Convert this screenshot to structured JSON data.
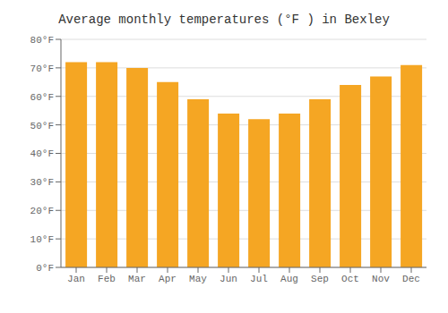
{
  "chart_data": {
    "type": "bar",
    "title": "Average monthly temperatures (°F ) in Bexley",
    "categories": [
      "Jan",
      "Feb",
      "Mar",
      "Apr",
      "May",
      "Jun",
      "Jul",
      "Aug",
      "Sep",
      "Oct",
      "Nov",
      "Dec"
    ],
    "values": [
      72,
      72,
      70,
      65,
      59,
      54,
      52,
      54,
      59,
      64,
      67,
      71
    ],
    "color": "#F5A623",
    "ylim": [
      0,
      80
    ],
    "yticks": [
      {
        "value": 0,
        "label": "0°F"
      },
      {
        "value": 10,
        "label": "10°F"
      },
      {
        "value": 20,
        "label": "20°F"
      },
      {
        "value": 30,
        "label": "30°F"
      },
      {
        "value": 40,
        "label": "40°F"
      },
      {
        "value": 50,
        "label": "50°F"
      },
      {
        "value": 60,
        "label": "60°F"
      },
      {
        "value": 70,
        "label": "70°F"
      },
      {
        "value": 80,
        "label": "80°F"
      }
    ],
    "grid": true
  }
}
